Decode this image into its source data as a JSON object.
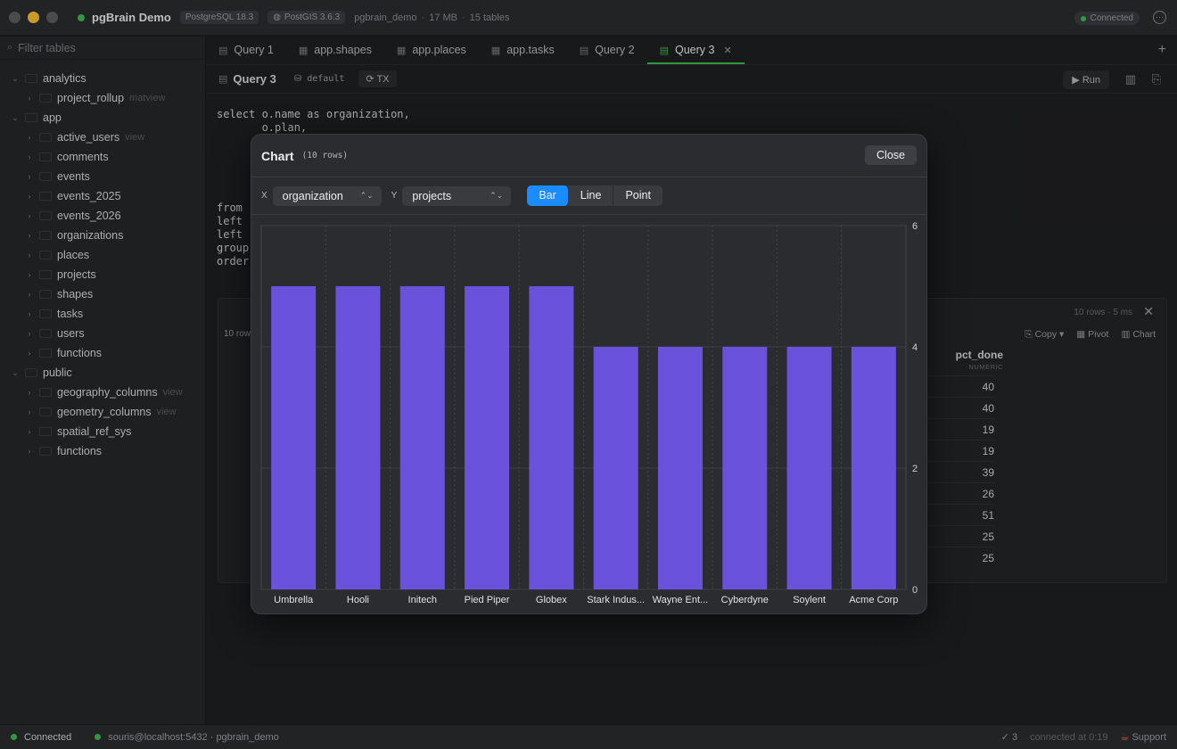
{
  "window": {
    "app_title": "pgBrain Demo",
    "pg_version": "PostgreSQL 18.3",
    "postgis": "PostGIS 3.6.3",
    "db": "pgbrain_demo",
    "size": "17 MB",
    "tables": "15 tables",
    "status": "Connected"
  },
  "sidebar": {
    "filter_placeholder": "Filter tables",
    "tree": [
      {
        "label": "analytics",
        "level": 0,
        "expanded": true
      },
      {
        "label": "project_rollup",
        "level": 1,
        "tag": "matview"
      },
      {
        "label": "app",
        "level": 0,
        "expanded": true
      },
      {
        "label": "active_users",
        "level": 1,
        "tag": "view"
      },
      {
        "label": "comments",
        "level": 1
      },
      {
        "label": "events",
        "level": 1
      },
      {
        "label": "events_2025",
        "level": 1
      },
      {
        "label": "events_2026",
        "level": 1
      },
      {
        "label": "organizations",
        "level": 1
      },
      {
        "label": "places",
        "level": 1
      },
      {
        "label": "projects",
        "level": 1
      },
      {
        "label": "shapes",
        "level": 1
      },
      {
        "label": "tasks",
        "level": 1
      },
      {
        "label": "users",
        "level": 1
      },
      {
        "label": "functions",
        "level": 1
      },
      {
        "label": "public",
        "level": 0,
        "expanded": true
      },
      {
        "label": "geography_columns",
        "level": 1,
        "tag": "view"
      },
      {
        "label": "geometry_columns",
        "level": 1,
        "tag": "view"
      },
      {
        "label": "spatial_ref_sys",
        "level": 1
      },
      {
        "label": "functions",
        "level": 1
      }
    ]
  },
  "tabs": [
    {
      "label": "Query 1",
      "icon": "doc-icon"
    },
    {
      "label": "app.shapes",
      "icon": "table-icon"
    },
    {
      "label": "app.places",
      "icon": "table-icon"
    },
    {
      "label": "app.tasks",
      "icon": "table-icon"
    },
    {
      "label": "Query 2",
      "icon": "doc-icon"
    },
    {
      "label": "Query 3",
      "icon": "doc-icon",
      "active": true
    }
  ],
  "query": {
    "title": "Query 3",
    "schema": "default",
    "tx": "TX",
    "run": "Run",
    "sql_lines": [
      "select o.name as organization,",
      "       o.plan,",
      "",
      "",
      "",
      "",
      "",
      "from",
      "left",
      "left",
      "group",
      "order"
    ]
  },
  "results": {
    "rows_label": "10 rows",
    "meta": "10 rows · 5 ms",
    "actions": {
      "copy": "Copy",
      "pivot": "Pivot",
      "chart": "Chart"
    },
    "column": "pct_done",
    "column_type": "NUMERIC",
    "pct_done": [
      "40",
      "40",
      "19",
      "19",
      "39",
      "26",
      "51",
      "25",
      "25"
    ]
  },
  "statusbar": {
    "connected": "Connected",
    "host": "souris@localhost:5432 · pgbrain_demo",
    "checks": "3",
    "connected_at": "connected at 0:19",
    "support": "Support"
  },
  "modal": {
    "title": "Chart",
    "rows": "(10 rows)",
    "close": "Close",
    "x_label": "X",
    "y_label": "Y",
    "x_value": "organization",
    "y_value": "projects",
    "types": [
      "Bar",
      "Line",
      "Point"
    ],
    "active_type": "Bar",
    "colors": {
      "bar": "#6b52dc",
      "accent": "#1a8cff"
    }
  },
  "chart_data": {
    "type": "bar",
    "categories": [
      "Umbrella",
      "Hooli",
      "Initech",
      "Pied Piper",
      "Globex",
      "Stark Indus...",
      "Wayne Ent...",
      "Cyberdyne",
      "Soylent",
      "Acme Corp"
    ],
    "values": [
      5,
      5,
      5,
      5,
      5,
      4,
      4,
      4,
      4,
      4
    ],
    "ylim": [
      0,
      6
    ],
    "yticks": [
      0,
      2,
      4,
      6
    ],
    "grid": true
  }
}
